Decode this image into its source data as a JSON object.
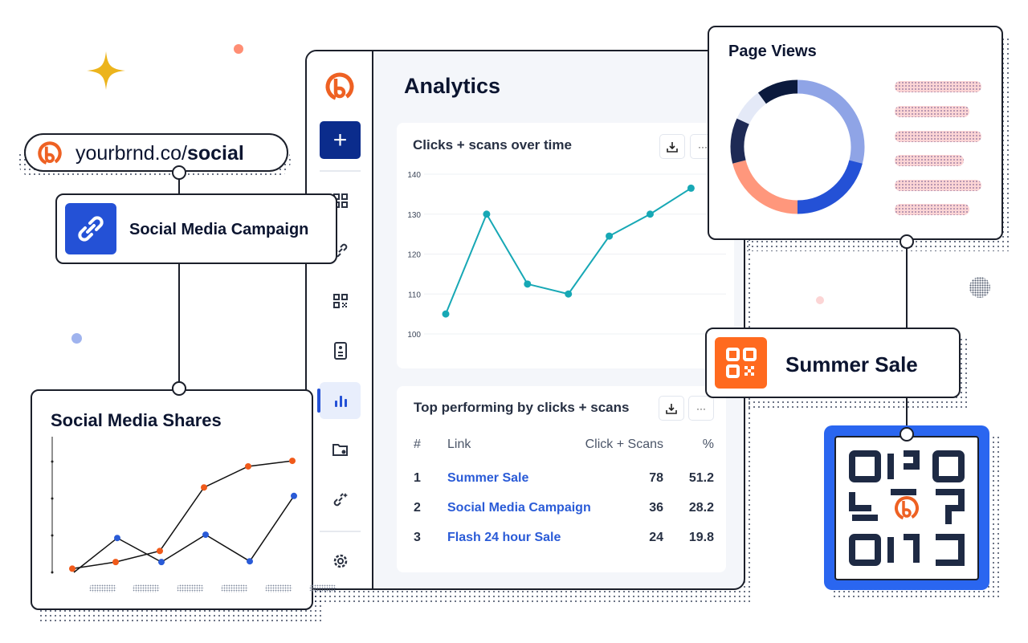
{
  "colors": {
    "brand_orange": "#ee6123",
    "navy": "#0b2c8c",
    "teal": "#17a8b5",
    "link_blue": "#2a5bd7",
    "series_orange": "#f05a1a",
    "series_blue": "#2a5bd7"
  },
  "url_pill": {
    "prefix": "yourbrnd.co/",
    "slug": "social",
    "icon": "bitly-logo-icon"
  },
  "campaign_card": {
    "title": "Social Media Campaign",
    "icon": "link-icon"
  },
  "summer_card": {
    "title": "Summer Sale",
    "icon": "qr-code-icon"
  },
  "sidebar": {
    "create_label": "+",
    "items": [
      {
        "icon": "dashboard-icon"
      },
      {
        "icon": "link-icon"
      },
      {
        "icon": "qr-code-icon"
      },
      {
        "icon": "page-icon"
      },
      {
        "icon": "analytics-icon",
        "active": true
      },
      {
        "icon": "folder-star-icon"
      },
      {
        "icon": "campaign-link-icon"
      },
      {
        "icon": "settings-icon"
      }
    ]
  },
  "main": {
    "title": "Analytics",
    "clicks_chart": {
      "title": "Clicks + scans over time",
      "download_icon": "download-icon",
      "more_label": "···"
    },
    "top_table": {
      "title": "Top performing by clicks + scans",
      "more_label": "···",
      "headers": [
        "#",
        "Link",
        "Click + Scans",
        "%"
      ],
      "rows": [
        {
          "rank": "1",
          "link": "Summer Sale",
          "count": "78",
          "pct": "51.2"
        },
        {
          "rank": "2",
          "link": "Social Media Campaign",
          "count": "36",
          "pct": "28.2"
        },
        {
          "rank": "3",
          "link": "Flash 24 hour Sale",
          "count": "24",
          "pct": "19.8"
        }
      ]
    }
  },
  "page_views": {
    "title": "Page Views"
  },
  "social_shares": {
    "title": "Social Media Shares"
  },
  "chart_data": [
    {
      "type": "line",
      "title": "Clicks + scans over time",
      "ylim": [
        100,
        140
      ],
      "yticks": [
        "140",
        "130",
        "120",
        "110",
        "100"
      ],
      "grid": true,
      "values": [
        105,
        130,
        112.5,
        110,
        124.5,
        130,
        136.5
      ]
    },
    {
      "type": "pie",
      "title": "Page Views",
      "donut": true,
      "values": [
        29,
        21,
        21,
        11,
        8,
        10
      ],
      "colors": [
        "#8fa4e6",
        "#2451d6",
        "#ff977c",
        "#1e2a55",
        "#e4e9f7",
        "#0b1a3d"
      ]
    },
    {
      "type": "line",
      "title": "Social Media Shares",
      "grid": false,
      "series": [
        {
          "color": "#f05a1a",
          "values": [
            0.1,
            0.28,
            0.58,
            2.3,
            2.87,
            3.02
          ]
        },
        {
          "color": "#2a5bd7",
          "values": [
            0,
            0.93,
            0.28,
            1.02,
            0.3,
            2.07
          ]
        }
      ]
    }
  ]
}
